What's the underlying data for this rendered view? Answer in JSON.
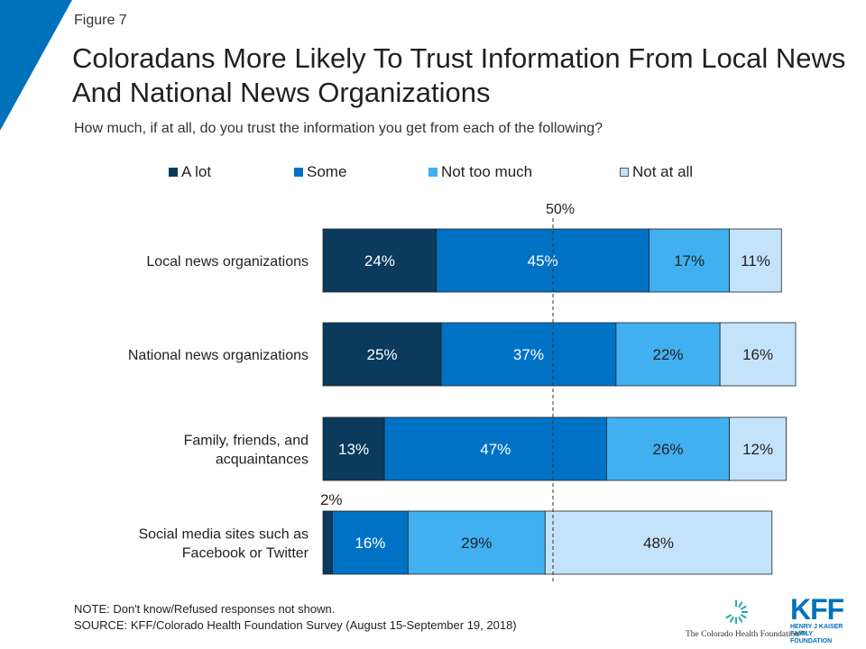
{
  "figure_label": "Figure 7",
  "title": "Coloradans More Likely To Trust Information From Local News And National News Organizations",
  "subtitle": "How much, if at all, do you trust the information you get from each of the following?",
  "chart_data": {
    "type": "bar",
    "orientation": "horizontal",
    "stacked": true,
    "categories": [
      "Local news organizations",
      "National news organizations",
      "Family, friends, and acquaintances",
      "Social media sites such as Facebook or Twitter"
    ],
    "series": [
      {
        "name": "A lot",
        "color": "#0b3a5d",
        "values": [
          24,
          25,
          13,
          2
        ],
        "labels": [
          "24%",
          "25%",
          "13%",
          "2%"
        ]
      },
      {
        "name": "Some",
        "color": "#0072c6",
        "values": [
          45,
          37,
          47,
          16
        ],
        "labels": [
          "45%",
          "37%",
          "47%",
          "16%"
        ]
      },
      {
        "name": "Not too much",
        "color": "#40b0f0",
        "values": [
          17,
          22,
          26,
          29
        ],
        "labels": [
          "17%",
          "22%",
          "26%",
          "29%"
        ]
      },
      {
        "name": "Not at all",
        "color": "#c3e3fa",
        "values": [
          11,
          16,
          12,
          48
        ],
        "labels": [
          "11%",
          "16%",
          "12%",
          "48%"
        ]
      }
    ],
    "reference_line": {
      "value": 50,
      "label": "50%",
      "style": "dashed"
    },
    "xlim": [
      0,
      100
    ],
    "legend_position": "top",
    "grid": false
  },
  "note": "NOTE: Don't know/Refused responses not shown.",
  "source": "SOURCE: KFF/Colorado Health Foundation Survey (August 15-September 19, 2018)",
  "logos": {
    "chf_name": "The Colorado Health Foundation™",
    "kff_letters": "KFF",
    "kff_line1": "HENRY J KAISER",
    "kff_line2": "FAMILY FOUNDATION"
  },
  "colors": {
    "accent": "#0072bc"
  }
}
